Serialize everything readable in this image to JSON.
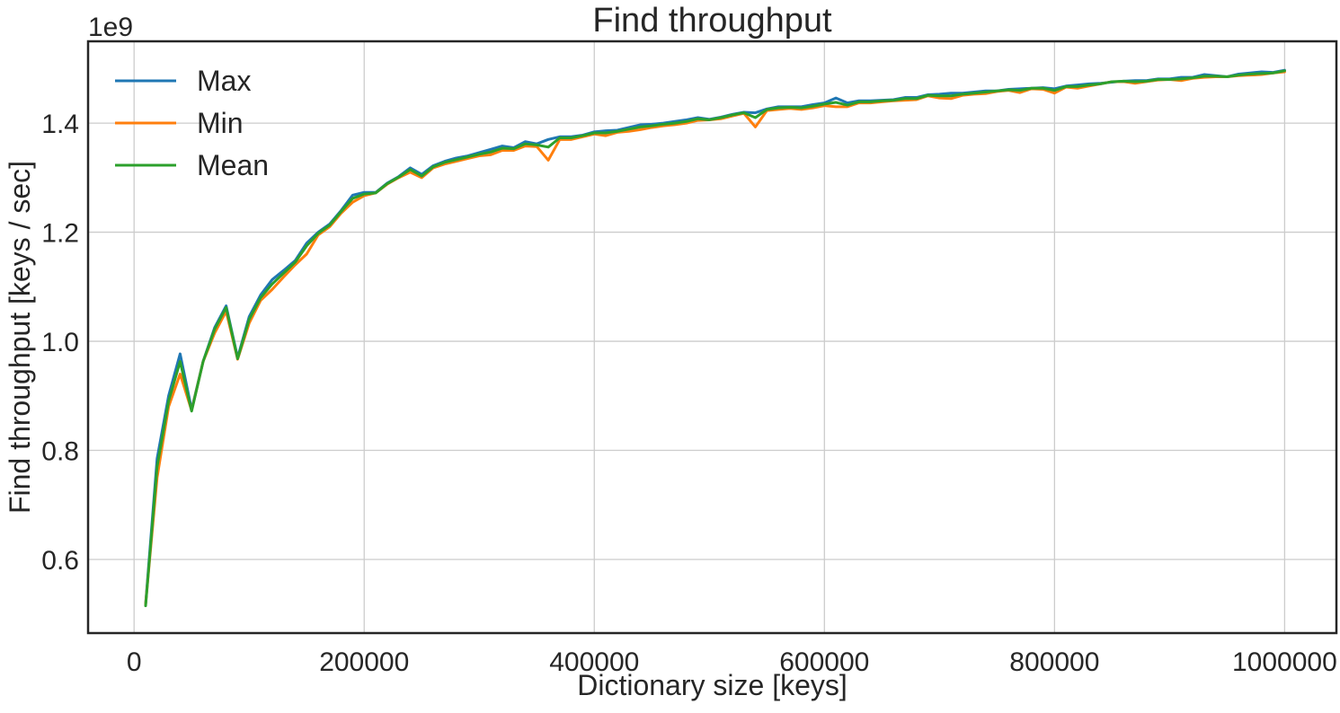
{
  "chart_data": {
    "type": "line",
    "title": "Find throughput",
    "xlabel": "Dictionary size [keys]",
    "ylabel": "Find throughput [keys / sec]",
    "y_offset_label": "1e9",
    "y_scale_multiplier": 1000000000,
    "xlim": [
      -40000,
      1045000
    ],
    "ylim": [
      0.465,
      1.55
    ],
    "x_ticks": [
      0,
      200000,
      400000,
      600000,
      800000,
      1000000
    ],
    "x_tick_labels": [
      "0",
      "200000",
      "400000",
      "600000",
      "800000",
      "1000000"
    ],
    "y_ticks": [
      0.6,
      0.8,
      1.0,
      1.2,
      1.4
    ],
    "y_tick_labels": [
      "0.6",
      "0.8",
      "1.0",
      "1.2",
      "1.4"
    ],
    "grid": true,
    "legend_position": "top-left",
    "x": [
      10000,
      20000,
      30000,
      40000,
      50000,
      60000,
      70000,
      80000,
      90000,
      100000,
      110000,
      120000,
      130000,
      140000,
      150000,
      160000,
      170000,
      180000,
      190000,
      200000,
      210000,
      220000,
      230000,
      240000,
      250000,
      260000,
      270000,
      280000,
      290000,
      300000,
      310000,
      320000,
      330000,
      340000,
      350000,
      360000,
      370000,
      380000,
      390000,
      400000,
      410000,
      420000,
      430000,
      440000,
      450000,
      460000,
      470000,
      480000,
      490000,
      500000,
      510000,
      520000,
      530000,
      540000,
      550000,
      560000,
      570000,
      580000,
      590000,
      600000,
      610000,
      620000,
      630000,
      640000,
      650000,
      660000,
      670000,
      680000,
      690000,
      700000,
      710000,
      720000,
      730000,
      740000,
      750000,
      760000,
      770000,
      780000,
      790000,
      800000,
      810000,
      820000,
      830000,
      840000,
      850000,
      860000,
      870000,
      880000,
      890000,
      900000,
      910000,
      920000,
      930000,
      940000,
      950000,
      960000,
      970000,
      980000,
      990000,
      1000000
    ],
    "series": [
      {
        "name": "Max",
        "color": "#1f77b4",
        "values": [
          0.518,
          0.785,
          0.9,
          0.977,
          0.875,
          0.963,
          1.025,
          1.065,
          0.97,
          1.045,
          1.085,
          1.113,
          1.13,
          1.148,
          1.18,
          1.2,
          1.215,
          1.24,
          1.268,
          1.273,
          1.273,
          1.29,
          1.302,
          1.318,
          1.306,
          1.322,
          1.33,
          1.336,
          1.34,
          1.346,
          1.352,
          1.358,
          1.355,
          1.366,
          1.362,
          1.37,
          1.375,
          1.375,
          1.378,
          1.384,
          1.386,
          1.387,
          1.392,
          1.397,
          1.398,
          1.4,
          1.403,
          1.406,
          1.41,
          1.407,
          1.411,
          1.416,
          1.42,
          1.419,
          1.426,
          1.43,
          1.43,
          1.43,
          1.434,
          1.437,
          1.446,
          1.437,
          1.441,
          1.441,
          1.442,
          1.443,
          1.447,
          1.447,
          1.452,
          1.453,
          1.455,
          1.455,
          1.457,
          1.459,
          1.459,
          1.462,
          1.463,
          1.464,
          1.465,
          1.463,
          1.468,
          1.47,
          1.472,
          1.473,
          1.475,
          1.477,
          1.478,
          1.478,
          1.481,
          1.481,
          1.484,
          1.484,
          1.489,
          1.487,
          1.485,
          1.49,
          1.492,
          1.494,
          1.493,
          1.497
        ]
      },
      {
        "name": "Min",
        "color": "#ff7f0e",
        "values": [
          0.518,
          0.75,
          0.88,
          0.94,
          0.873,
          0.963,
          1.015,
          1.055,
          0.967,
          1.033,
          1.075,
          1.095,
          1.118,
          1.14,
          1.16,
          1.195,
          1.21,
          1.235,
          1.255,
          1.267,
          1.272,
          1.288,
          1.3,
          1.31,
          1.3,
          1.318,
          1.325,
          1.33,
          1.335,
          1.34,
          1.342,
          1.35,
          1.35,
          1.358,
          1.357,
          1.332,
          1.37,
          1.37,
          1.375,
          1.38,
          1.377,
          1.383,
          1.385,
          1.388,
          1.392,
          1.395,
          1.397,
          1.4,
          1.405,
          1.406,
          1.408,
          1.413,
          1.418,
          1.393,
          1.423,
          1.425,
          1.427,
          1.425,
          1.428,
          1.432,
          1.43,
          1.43,
          1.437,
          1.437,
          1.439,
          1.441,
          1.442,
          1.443,
          1.45,
          1.446,
          1.445,
          1.451,
          1.453,
          1.454,
          1.458,
          1.46,
          1.456,
          1.463,
          1.462,
          1.455,
          1.466,
          1.464,
          1.468,
          1.472,
          1.476,
          1.476,
          1.473,
          1.476,
          1.479,
          1.48,
          1.478,
          1.482,
          1.484,
          1.485,
          1.485,
          1.487,
          1.488,
          1.489,
          1.492,
          1.494
        ]
      },
      {
        "name": "Mean",
        "color": "#2ca02c",
        "values": [
          0.515,
          0.77,
          0.89,
          0.963,
          0.872,
          0.963,
          1.022,
          1.062,
          0.968,
          1.04,
          1.08,
          1.105,
          1.125,
          1.145,
          1.175,
          1.198,
          1.213,
          1.238,
          1.262,
          1.27,
          1.272,
          1.289,
          1.301,
          1.315,
          1.303,
          1.32,
          1.328,
          1.333,
          1.338,
          1.343,
          1.347,
          1.354,
          1.353,
          1.362,
          1.36,
          1.356,
          1.373,
          1.373,
          1.377,
          1.382,
          1.382,
          1.385,
          1.389,
          1.393,
          1.395,
          1.398,
          1.4,
          1.403,
          1.408,
          1.406,
          1.41,
          1.415,
          1.419,
          1.41,
          1.425,
          1.428,
          1.429,
          1.428,
          1.431,
          1.435,
          1.438,
          1.433,
          1.439,
          1.439,
          1.441,
          1.442,
          1.445,
          1.445,
          1.451,
          1.45,
          1.45,
          1.453,
          1.455,
          1.457,
          1.459,
          1.461,
          1.46,
          1.464,
          1.464,
          1.46,
          1.467,
          1.467,
          1.47,
          1.472,
          1.476,
          1.477,
          1.476,
          1.477,
          1.48,
          1.48,
          1.481,
          1.483,
          1.486,
          1.486,
          1.485,
          1.488,
          1.49,
          1.491,
          1.492,
          1.496
        ]
      }
    ]
  }
}
